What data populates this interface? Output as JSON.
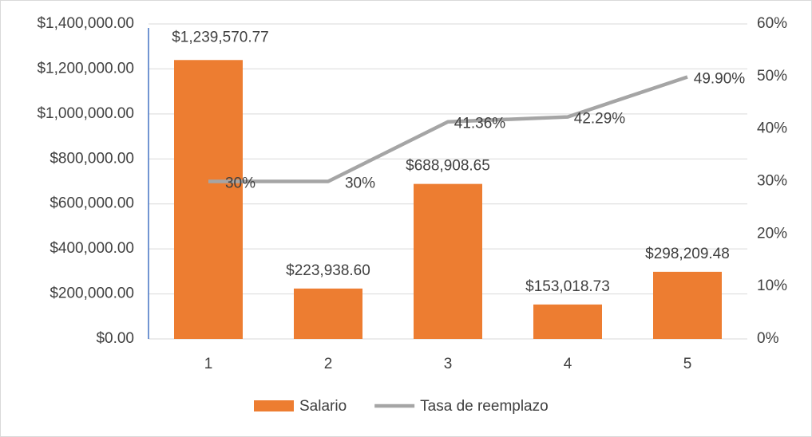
{
  "chart_data": {
    "type": "bar",
    "categories": [
      "1",
      "2",
      "3",
      "4",
      "5"
    ],
    "series": [
      {
        "name": "Salario",
        "type": "bar",
        "color": "#ED7D31",
        "values": [
          1239570.77,
          223938.6,
          688908.65,
          153018.73,
          298209.48
        ],
        "value_labels": [
          "$1,239,570.77",
          "$223,938.60",
          "$688,908.65",
          "$153,018.73",
          "$298,209.48"
        ]
      },
      {
        "name": "Tasa de reemplazo",
        "type": "line",
        "axis": "y2",
        "color": "#A5A5A5",
        "values": [
          30,
          30,
          41.36,
          42.29,
          49.9
        ],
        "value_labels": [
          "30%",
          "30%",
          "41.36%",
          "42.29%",
          "49.90%"
        ]
      }
    ],
    "ylim": [
      0,
      1400000
    ],
    "yticks": [
      {
        "value": 0,
        "label": "$0.00"
      },
      {
        "value": 200000,
        "label": "$200,000.00"
      },
      {
        "value": 400000,
        "label": "$400,000.00"
      },
      {
        "value": 600000,
        "label": "$600,000.00"
      },
      {
        "value": 800000,
        "label": "$800,000.00"
      },
      {
        "value": 1000000,
        "label": "$1,000,000.00"
      },
      {
        "value": 1200000,
        "label": "$1,200,000.00"
      },
      {
        "value": 1400000,
        "label": "$1,400,000.00"
      }
    ],
    "y2lim": [
      0,
      60
    ],
    "y2ticks": [
      {
        "value": 0,
        "label": "0%"
      },
      {
        "value": 10,
        "label": "10%"
      },
      {
        "value": 20,
        "label": "20%"
      },
      {
        "value": 30,
        "label": "30%"
      },
      {
        "value": 40,
        "label": "40%"
      },
      {
        "value": 50,
        "label": "50%"
      },
      {
        "value": 60,
        "label": "60%"
      }
    ],
    "grid": true,
    "legend": "bottom"
  }
}
